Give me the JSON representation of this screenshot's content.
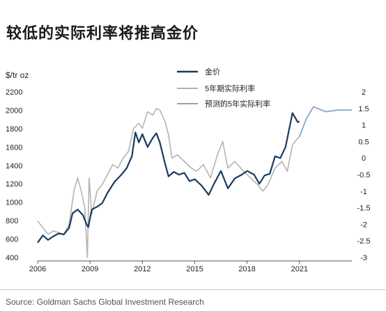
{
  "page": {
    "title": "较低的实际利率将推高金价",
    "source": "Source: Goldman Sachs Global Investment Research"
  },
  "chart_data": {
    "type": "line",
    "left_unit": "$/tr oz",
    "y_left": {
      "ticks": [
        "2200",
        "2000",
        "1800",
        "1600",
        "1400",
        "1200",
        "1000",
        "800",
        "600",
        "400"
      ],
      "range": [
        400,
        2200
      ]
    },
    "y_right": {
      "ticks": [
        "2",
        "1.5",
        "1",
        "0.5",
        "0",
        "-0.5",
        "-1",
        "-1.5",
        "-2",
        "-2.5",
        "-3"
      ],
      "range": [
        -3,
        2
      ]
    },
    "x_ticks": [
      "2006",
      "2009",
      "2012",
      "2015",
      "2018",
      "2021"
    ],
    "x_range": [
      2006,
      2024
    ],
    "legend": [
      "金价",
      "5年期实际利率",
      "预测的5年实际利率"
    ],
    "legend_placement": "top-center",
    "colors": {
      "gold": "#1b3a5e",
      "real_rate": "#b3b3b3",
      "forecast": "#8aa5c0"
    },
    "series": [
      {
        "name": "金价",
        "axis": "left",
        "points": [
          [
            2006.0,
            560
          ],
          [
            2006.3,
            640
          ],
          [
            2006.6,
            590
          ],
          [
            2006.9,
            630
          ],
          [
            2007.2,
            660
          ],
          [
            2007.5,
            650
          ],
          [
            2007.8,
            720
          ],
          [
            2008.0,
            880
          ],
          [
            2008.3,
            920
          ],
          [
            2008.6,
            860
          ],
          [
            2008.8,
            760
          ],
          [
            2008.9,
            730
          ],
          [
            2009.1,
            920
          ],
          [
            2009.4,
            950
          ],
          [
            2009.7,
            990
          ],
          [
            2010.0,
            1100
          ],
          [
            2010.4,
            1220
          ],
          [
            2010.8,
            1300
          ],
          [
            2011.1,
            1370
          ],
          [
            2011.4,
            1500
          ],
          [
            2011.6,
            1760
          ],
          [
            2011.8,
            1650
          ],
          [
            2012.0,
            1740
          ],
          [
            2012.3,
            1600
          ],
          [
            2012.6,
            1700
          ],
          [
            2012.8,
            1750
          ],
          [
            2013.0,
            1650
          ],
          [
            2013.3,
            1420
          ],
          [
            2013.5,
            1280
          ],
          [
            2013.8,
            1330
          ],
          [
            2014.1,
            1300
          ],
          [
            2014.4,
            1320
          ],
          [
            2014.7,
            1230
          ],
          [
            2015.0,
            1250
          ],
          [
            2015.4,
            1180
          ],
          [
            2015.8,
            1080
          ],
          [
            2016.1,
            1200
          ],
          [
            2016.5,
            1340
          ],
          [
            2016.9,
            1150
          ],
          [
            2017.3,
            1260
          ],
          [
            2017.7,
            1300
          ],
          [
            2018.0,
            1340
          ],
          [
            2018.4,
            1300
          ],
          [
            2018.7,
            1200
          ],
          [
            2019.0,
            1290
          ],
          [
            2019.3,
            1310
          ],
          [
            2019.6,
            1500
          ],
          [
            2019.9,
            1480
          ],
          [
            2020.2,
            1600
          ],
          [
            2020.6,
            1970
          ],
          [
            2020.9,
            1870
          ],
          [
            2021.0,
            1880
          ]
        ]
      },
      {
        "name": "5年期实际利率",
        "axis": "right",
        "points": [
          [
            2006.0,
            -1.9
          ],
          [
            2006.3,
            -2.1
          ],
          [
            2006.6,
            -2.3
          ],
          [
            2006.9,
            -2.2
          ],
          [
            2007.2,
            -2.25
          ],
          [
            2007.5,
            -2.3
          ],
          [
            2007.8,
            -2.0
          ],
          [
            2008.1,
            -0.95
          ],
          [
            2008.3,
            -0.6
          ],
          [
            2008.5,
            -1.0
          ],
          [
            2008.7,
            -1.5
          ],
          [
            2008.85,
            -3.0
          ],
          [
            2008.95,
            -0.6
          ],
          [
            2009.1,
            -1.7
          ],
          [
            2009.4,
            -1.0
          ],
          [
            2009.7,
            -0.8
          ],
          [
            2010.0,
            -0.5
          ],
          [
            2010.3,
            -0.2
          ],
          [
            2010.6,
            -0.3
          ],
          [
            2010.9,
            0.0
          ],
          [
            2011.2,
            0.2
          ],
          [
            2011.5,
            0.9
          ],
          [
            2011.8,
            1.05
          ],
          [
            2012.0,
            0.9
          ],
          [
            2012.3,
            1.4
          ],
          [
            2012.6,
            1.3
          ],
          [
            2012.8,
            1.5
          ],
          [
            2013.0,
            1.45
          ],
          [
            2013.3,
            1.1
          ],
          [
            2013.5,
            0.7
          ],
          [
            2013.7,
            0.0
          ],
          [
            2014.0,
            0.1
          ],
          [
            2014.4,
            -0.1
          ],
          [
            2014.8,
            -0.3
          ],
          [
            2015.1,
            -0.4
          ],
          [
            2015.5,
            -0.2
          ],
          [
            2015.9,
            -0.6
          ],
          [
            2016.3,
            0.1
          ],
          [
            2016.6,
            0.5
          ],
          [
            2016.9,
            -0.3
          ],
          [
            2017.3,
            -0.1
          ],
          [
            2017.8,
            -0.4
          ],
          [
            2018.2,
            -0.6
          ],
          [
            2018.6,
            -0.8
          ],
          [
            2018.9,
            -1.0
          ],
          [
            2019.2,
            -0.8
          ],
          [
            2019.6,
            -0.3
          ],
          [
            2020.0,
            -0.1
          ],
          [
            2020.3,
            -0.4
          ],
          [
            2020.6,
            0.4
          ],
          [
            2020.9,
            0.6
          ],
          [
            2021.0,
            0.65
          ]
        ]
      },
      {
        "name": "预测的5年实际利率",
        "axis": "right",
        "points": [
          [
            2021.0,
            0.65
          ],
          [
            2021.4,
            1.2
          ],
          [
            2021.8,
            1.55
          ],
          [
            2022.5,
            1.4
          ],
          [
            2023.2,
            1.45
          ],
          [
            2024.0,
            1.45
          ]
        ]
      }
    ]
  }
}
